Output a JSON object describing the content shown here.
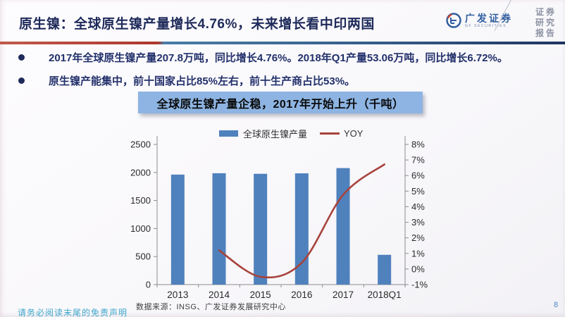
{
  "header": {
    "title": "原生镍：全球原生镍产量增长4.76%，未来增长看中印两国",
    "logo_cn": "广发证券",
    "logo_en": "GF SECURITIES",
    "side_label": [
      "证券",
      "研究",
      "报告"
    ]
  },
  "bullets": [
    "2017年全球原生镍产量207.8万吨，同比增长4.76%。2018年Q1产量53.06万吨，同比增长6.72%。",
    "原生镍产能集中，前十国家占比85%左右，前十生产商占比53%。"
  ],
  "chart_banner": "全球原生镍产量企稳，2017年开始上升（千吨）",
  "footer": {
    "source": "数据来源：INSG、广发证券发展研究中心",
    "page_number": "8",
    "disclaimer": "请务必阅读末尾的免责声明"
  },
  "colors": {
    "bar": "#4f81bd",
    "line": "#a8433d",
    "axis": "#8c8c8c",
    "tick_text": "#2a2a2a",
    "banner_bg": "#8db4e2",
    "title_text": "#1e2a5a"
  },
  "chart_data": {
    "type": "bar",
    "subtype": "bar+line combo, dual axis",
    "title": "全球原生镍产量企稳，2017年开始上升（千吨）",
    "categories": [
      "2013",
      "2014",
      "2015",
      "2016",
      "2017",
      "2018Q1"
    ],
    "series": [
      {
        "name": "全球原生镍产量",
        "type": "bar",
        "axis": "left",
        "values": [
          1962,
          1986,
          1976,
          1984,
          2078,
          531
        ]
      },
      {
        "name": "YOY",
        "type": "line",
        "axis": "right",
        "values": [
          null,
          1.2,
          -0.5,
          0.4,
          4.76,
          6.72
        ]
      }
    ],
    "left_axis": {
      "min": 0,
      "max": 2500,
      "step": 500,
      "suffix": ""
    },
    "right_axis": {
      "min": -1,
      "max": 8,
      "step": 1,
      "suffix": "%"
    },
    "grid": false,
    "legend_position": "top"
  }
}
